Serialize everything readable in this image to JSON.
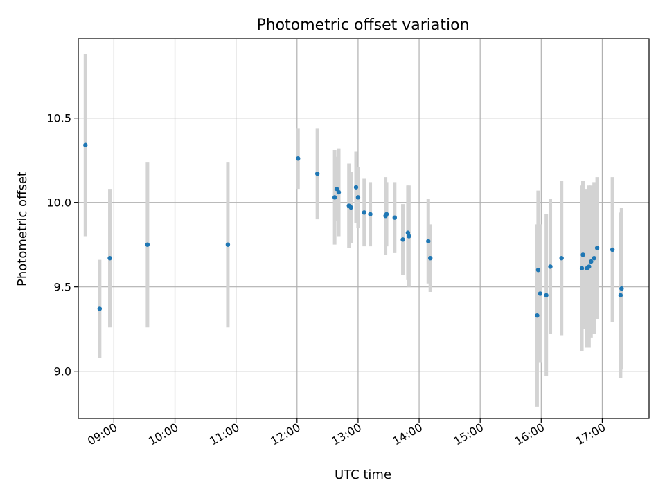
{
  "chart_data": {
    "type": "scatter",
    "title": "Photometric offset variation",
    "xlabel": "UTC time",
    "ylabel": "Photometric offset",
    "xlim": [
      "08:25",
      "17:46"
    ],
    "ylim": [
      8.72,
      10.97
    ],
    "x_ticks": [
      "09:00",
      "10:00",
      "11:00",
      "12:00",
      "13:00",
      "14:00",
      "15:00",
      "16:00",
      "17:00"
    ],
    "y_ticks": [
      9.0,
      9.5,
      10.0,
      10.5
    ],
    "grid": true,
    "marker_color": "#1f77b4",
    "errorbar_color": "#d3d3d3",
    "series": [
      {
        "points": [
          {
            "x": "08:32",
            "y": 10.34,
            "err": 0.54
          },
          {
            "x": "08:46",
            "y": 9.37,
            "err": 0.29
          },
          {
            "x": "08:56",
            "y": 9.67,
            "err": 0.41
          },
          {
            "x": "09:33",
            "y": 9.75,
            "err": 0.49
          },
          {
            "x": "10:52",
            "y": 9.75,
            "err": 0.49
          },
          {
            "x": "12:01",
            "y": 10.26,
            "err": 0.18
          },
          {
            "x": "12:20",
            "y": 10.17,
            "err": 0.27
          },
          {
            "x": "12:37",
            "y": 10.03,
            "err": 0.28
          },
          {
            "x": "12:39",
            "y": 10.08,
            "err": 0.19
          },
          {
            "x": "12:41",
            "y": 10.06,
            "err": 0.26
          },
          {
            "x": "12:51",
            "y": 9.98,
            "err": 0.25
          },
          {
            "x": "12:53",
            "y": 9.97,
            "err": 0.21
          },
          {
            "x": "12:58",
            "y": 10.09,
            "err": 0.21
          },
          {
            "x": "13:00",
            "y": 10.03,
            "err": 0.18
          },
          {
            "x": "13:06",
            "y": 9.94,
            "err": 0.2
          },
          {
            "x": "13:12",
            "y": 9.93,
            "err": 0.19
          },
          {
            "x": "13:27",
            "y": 9.92,
            "err": 0.23
          },
          {
            "x": "13:28",
            "y": 9.93,
            "err": 0.19
          },
          {
            "x": "13:36",
            "y": 9.91,
            "err": 0.21
          },
          {
            "x": "13:44",
            "y": 9.78,
            "err": 0.21
          },
          {
            "x": "13:49",
            "y": 9.82,
            "err": 0.28
          },
          {
            "x": "13:50",
            "y": 9.8,
            "err": 0.3
          },
          {
            "x": "14:09",
            "y": 9.77,
            "err": 0.25
          },
          {
            "x": "14:11",
            "y": 9.67,
            "err": 0.2
          },
          {
            "x": "15:56",
            "y": 9.33,
            "err": 0.54
          },
          {
            "x": "15:57",
            "y": 9.6,
            "err": 0.47
          },
          {
            "x": "15:59",
            "y": 9.46,
            "err": 0.41
          },
          {
            "x": "16:05",
            "y": 9.45,
            "err": 0.48
          },
          {
            "x": "16:09",
            "y": 9.62,
            "err": 0.4
          },
          {
            "x": "16:20",
            "y": 9.67,
            "err": 0.46
          },
          {
            "x": "16:40",
            "y": 9.61,
            "err": 0.49
          },
          {
            "x": "16:41",
            "y": 9.69,
            "err": 0.44
          },
          {
            "x": "16:45",
            "y": 9.61,
            "err": 0.47
          },
          {
            "x": "16:47",
            "y": 9.62,
            "err": 0.48
          },
          {
            "x": "16:49",
            "y": 9.65,
            "err": 0.45
          },
          {
            "x": "16:52",
            "y": 9.67,
            "err": 0.45
          },
          {
            "x": "16:55",
            "y": 9.73,
            "err": 0.42
          },
          {
            "x": "17:10",
            "y": 9.72,
            "err": 0.43
          },
          {
            "x": "17:18",
            "y": 9.45,
            "err": 0.49
          },
          {
            "x": "17:19",
            "y": 9.49,
            "err": 0.48
          }
        ]
      }
    ]
  }
}
